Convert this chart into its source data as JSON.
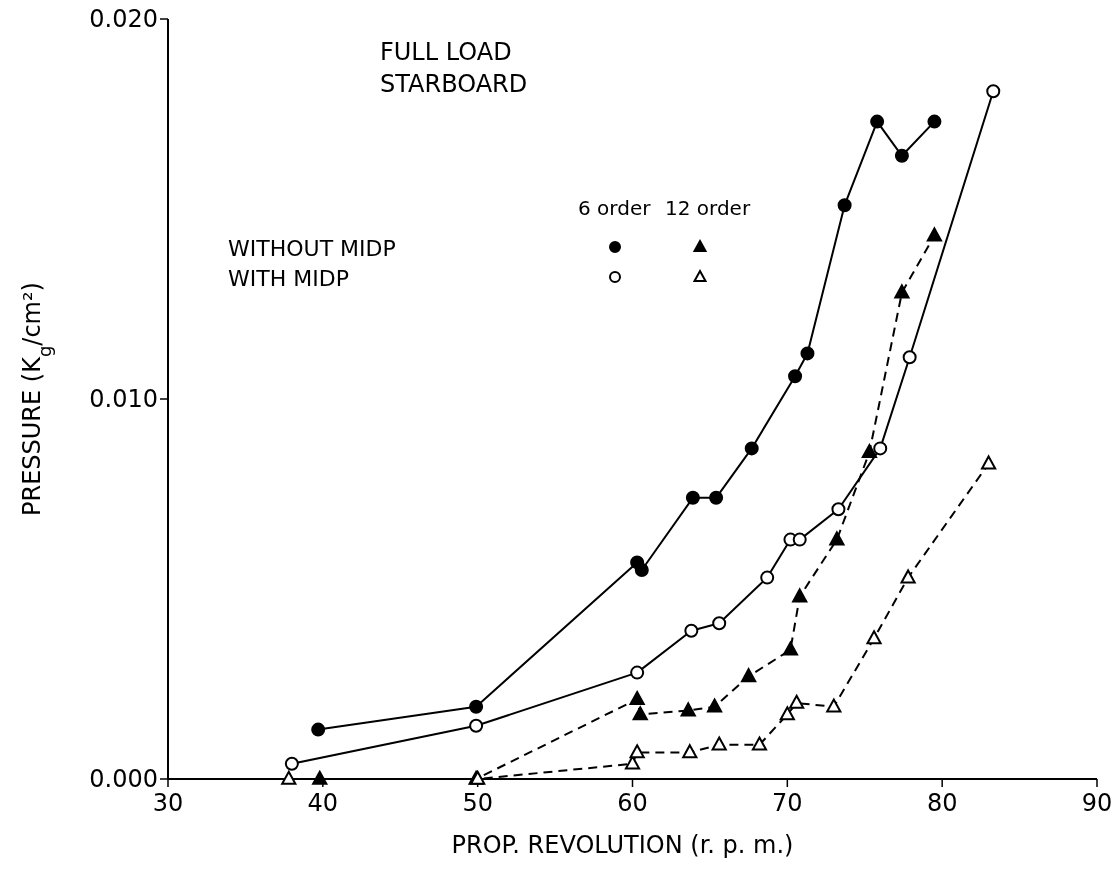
{
  "chart_data": {
    "type": "line",
    "xlabel": "PROP. REVOLUTION  (r. p. m.)",
    "ylabel": "PRESSURE (K$_{g}$/cm²)",
    "annotations": [
      "FULL LOAD",
      "STARBOARD",
      "6 order",
      "12 order",
      "WITHOUT MIDP",
      "WITH MIDP"
    ],
    "xlim": [
      30,
      90
    ],
    "xticks": [
      30,
      40,
      50,
      60,
      70,
      80,
      90
    ],
    "ylim": [
      0,
      0.02
    ],
    "yticks": [
      {
        "value": 0,
        "label": "0.000"
      },
      {
        "value": 0.01,
        "label": "0.010"
      },
      {
        "value": 0.02,
        "label": "0.020"
      }
    ],
    "grid": false,
    "series": [
      {
        "color": "#000000",
        "marker": "circle",
        "line_style": "solid",
        "x": [
          39.7,
          49.9,
          60.3,
          60.6,
          63.9,
          65.4,
          67.7,
          70.5,
          71.3,
          73.7,
          75.8,
          77.4,
          79.5
        ],
        "values": [
          0.0013,
          0.0019,
          0.0057,
          0.0055,
          0.0074,
          0.0074,
          0.0087,
          0.0106,
          0.0112,
          0.0151,
          0.0173,
          0.0164,
          0.0173
        ]
      },
      {
        "color": "#ffffff",
        "marker": "circle",
        "line_style": "solid",
        "x": [
          38.0,
          49.9,
          60.3,
          63.8,
          65.6,
          68.7,
          70.2,
          70.8,
          73.3,
          76.0,
          77.9,
          83.3
        ],
        "values": [
          0.0004,
          0.0014,
          0.0028,
          0.0039,
          0.0041,
          0.0053,
          0.0063,
          0.0063,
          0.0071,
          0.0087,
          0.0111,
          0.0181
        ]
      },
      {
        "color": "#000000",
        "marker": "triangle",
        "line_style": "dashed",
        "x": [
          39.8,
          49.9,
          60.3,
          60.5,
          63.6,
          65.3,
          67.5,
          70.2,
          70.8,
          73.2,
          75.3,
          77.4,
          79.5
        ],
        "values": [
          0,
          0,
          0.0021,
          0.0017,
          0.0018,
          0.0019,
          0.0027,
          0.0034,
          0.0048,
          0.0063,
          0.0086,
          0.0128,
          0.0143
        ]
      },
      {
        "color": "#ffffff",
        "marker": "triangle",
        "line_style": "dashed",
        "x": [
          37.8,
          50.0,
          60.0,
          60.3,
          63.7,
          65.6,
          68.2,
          70.0,
          70.6,
          73.0,
          75.6,
          77.8,
          83.0
        ],
        "values": [
          0,
          0,
          0.0004,
          0.0007,
          0.0007,
          0.0009,
          0.0009,
          0.0017,
          0.002,
          0.0019,
          0.0037,
          0.0053,
          0.0083
        ]
      }
    ]
  }
}
